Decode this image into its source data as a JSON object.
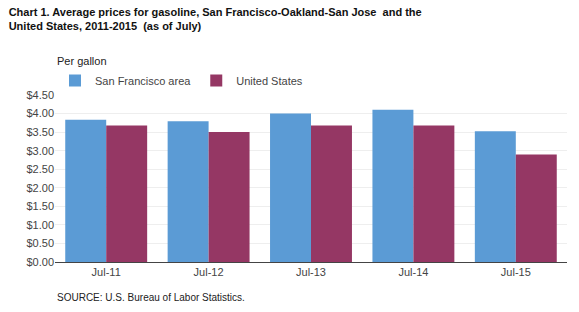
{
  "chart_data": {
    "type": "bar",
    "title": "Chart 1. Average prices for gasoline, San Francisco-Oakland-San Jose  and the",
    "subtitle": "United States, 2011-2015  (as of July)",
    "ylabel": "Per gallon",
    "annotations": [
      {
        "text": "SOURCE: U.S. Bureau of Labor Statistics."
      }
    ],
    "categories": [
      "Jul-11",
      "Jul-12",
      "Jul-13",
      "Jul-14",
      "Jul-15"
    ],
    "series": [
      {
        "name": "San Francisco area",
        "color": "#5B9BD5",
        "values": [
          3.83,
          3.79,
          4.0,
          4.1,
          3.52
        ]
      },
      {
        "name": "United States",
        "color": "#953764",
        "values": [
          3.68,
          3.5,
          3.68,
          3.68,
          2.9
        ]
      }
    ],
    "ylim": [
      0,
      4.5
    ],
    "yticks": [
      {
        "value": 0,
        "label": "$0.00"
      },
      {
        "value": 0.5,
        "label": "$0.50"
      },
      {
        "value": 1,
        "label": "$1.00"
      },
      {
        "value": 1.5,
        "label": "$1.50"
      },
      {
        "value": 2,
        "label": "$2.00"
      },
      {
        "value": 2.5,
        "label": "$2.50"
      },
      {
        "value": 3,
        "label": "$3.00"
      },
      {
        "value": 3.5,
        "label": "$3.50"
      },
      {
        "value": 4,
        "label": "$4.00"
      },
      {
        "value": 4.5,
        "label": "$4.50"
      }
    ],
    "grid": true,
    "legend": "upper left"
  }
}
